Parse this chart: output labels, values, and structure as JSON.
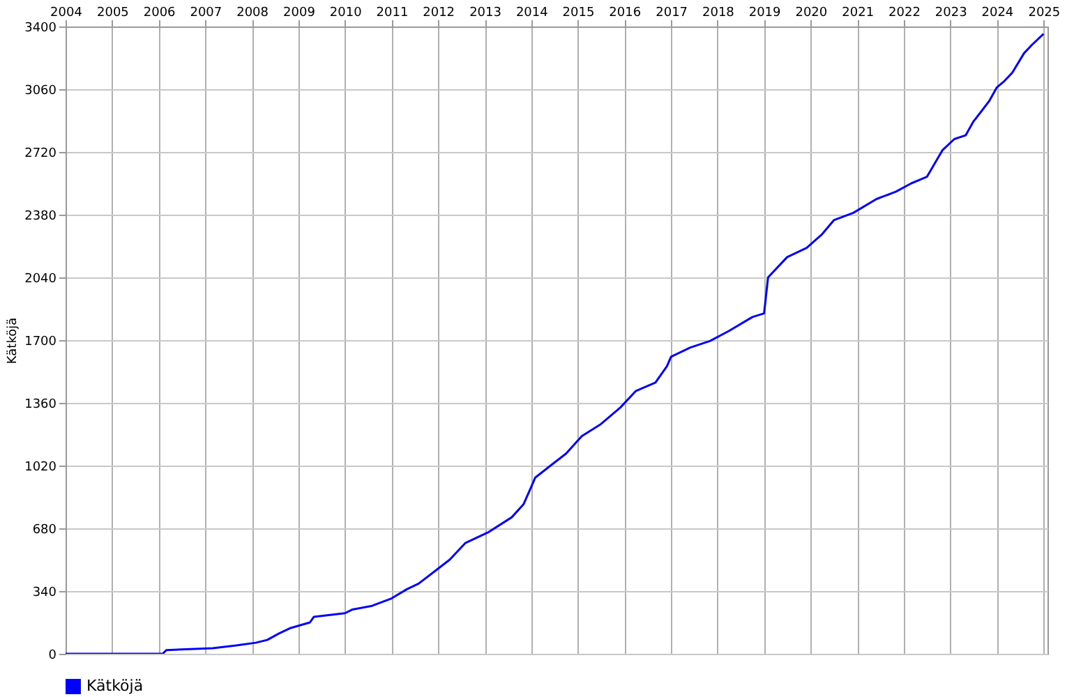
{
  "chart_data": {
    "type": "line",
    "ylabel": "Kätköjä",
    "legend": "bottom left",
    "grid": true,
    "xlim": [
      "2004-01",
      "2025-02"
    ],
    "ylim": [
      0,
      3400
    ],
    "xticks": [
      "2004",
      "2005",
      "2006",
      "2007",
      "2008",
      "2009",
      "2010",
      "2011",
      "2012",
      "2013",
      "2014",
      "2015",
      "2016",
      "2017",
      "2018",
      "2019",
      "2020",
      "2021",
      "2022",
      "2023",
      "2024",
      "2025"
    ],
    "yticks": [
      0,
      340,
      680,
      1020,
      1360,
      1700,
      2040,
      2380,
      2720,
      3060,
      3400
    ],
    "series": [
      {
        "name": "Kätköjä",
        "color": "#0000ff",
        "x": [
          "2004-01",
          "2006-02",
          "2006-03",
          "2007-03",
          "2007-09",
          "2008-02",
          "2008-05",
          "2008-08",
          "2008-11",
          "2009-04",
          "2009-05",
          "2010-01",
          "2010-03",
          "2010-08",
          "2011-01",
          "2011-05",
          "2011-08",
          "2011-12",
          "2012-04",
          "2012-08",
          "2013-02",
          "2013-08",
          "2013-11",
          "2014-01",
          "2014-02",
          "2014-06",
          "2014-10",
          "2015-02",
          "2015-07",
          "2015-12",
          "2016-04",
          "2016-09",
          "2016-12",
          "2017-01",
          "2017-06",
          "2017-11",
          "2018-04",
          "2018-10",
          "2019-01",
          "2019-02",
          "2019-07",
          "2019-12",
          "2020-04",
          "2020-07",
          "2020-12",
          "2021-06",
          "2021-11",
          "2022-03",
          "2022-07",
          "2022-11",
          "2023-02",
          "2023-05",
          "2023-07",
          "2023-09",
          "2023-11",
          "2024-01",
          "2024-03",
          "2024-05",
          "2024-08",
          "2024-10",
          "2025-01"
        ],
        "values": [
          0,
          0,
          20,
          30,
          45,
          60,
          75,
          110,
          140,
          170,
          200,
          220,
          240,
          260,
          300,
          350,
          380,
          445,
          510,
          600,
          660,
          740,
          810,
          905,
          955,
          1020,
          1085,
          1180,
          1245,
          1335,
          1425,
          1470,
          1560,
          1610,
          1660,
          1695,
          1750,
          1825,
          1845,
          2040,
          2150,
          2200,
          2275,
          2350,
          2390,
          2465,
          2505,
          2550,
          2585,
          2730,
          2790,
          2810,
          2885,
          2940,
          2995,
          3070,
          3105,
          3150,
          3255,
          3300,
          3360
        ]
      }
    ]
  }
}
